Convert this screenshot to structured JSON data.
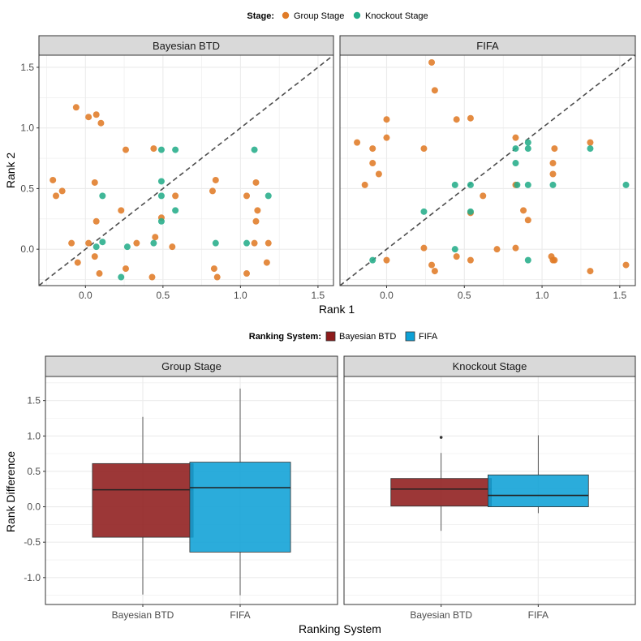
{
  "colors": {
    "group_stage": "#E07B27",
    "knockout_stage": "#25AD8A",
    "bayesian_btd": "#8E1B1B",
    "fifa": "#0EA1D6",
    "strip_fill": "#D9D9D9",
    "grid": "#EBEBEB",
    "panel_border": "#333333"
  },
  "chart_data": [
    {
      "type": "scatter",
      "legend": {
        "title": "Stage:",
        "entries": [
          "Group Stage",
          "Knockout Stage"
        ],
        "placement": "top"
      },
      "xlabel": "Rank 1",
      "ylabel": "Rank 2",
      "xlim": [
        -0.3,
        1.6
      ],
      "ylim": [
        -0.3,
        1.6
      ],
      "xticks": [
        0.0,
        0.5,
        1.0,
        1.5
      ],
      "yticks": [
        0.0,
        0.5,
        1.0,
        1.5
      ],
      "tick_labels": [
        "0.0",
        "0.5",
        "1.0",
        "1.5"
      ],
      "reference_line": "y = x (dashed)",
      "grid": true,
      "facets": [
        {
          "label": "Bayesian BTD",
          "series": [
            {
              "name": "Group Stage",
              "points": [
                [
                  -0.06,
                  1.17
                ],
                [
                  0.02,
                  1.09
                ],
                [
                  0.07,
                  1.11
                ],
                [
                  0.1,
                  1.04
                ],
                [
                  0.26,
                  0.82
                ],
                [
                  0.44,
                  0.83
                ],
                [
                  -0.21,
                  0.57
                ],
                [
                  -0.19,
                  0.44
                ],
                [
                  -0.15,
                  0.48
                ],
                [
                  0.06,
                  0.55
                ],
                [
                  -0.09,
                  0.05
                ],
                [
                  0.02,
                  0.05
                ],
                [
                  -0.05,
                  -0.11
                ],
                [
                  0.06,
                  -0.06
                ],
                [
                  0.07,
                  0.23
                ],
                [
                  0.09,
                  -0.2
                ],
                [
                  0.23,
                  0.32
                ],
                [
                  0.26,
                  -0.16
                ],
                [
                  0.33,
                  0.05
                ],
                [
                  0.43,
                  -0.23
                ],
                [
                  0.45,
                  0.1
                ],
                [
                  0.49,
                  0.26
                ],
                [
                  0.56,
                  0.02
                ],
                [
                  0.58,
                  0.44
                ],
                [
                  0.82,
                  0.48
                ],
                [
                  0.84,
                  0.57
                ],
                [
                  0.83,
                  -0.16
                ],
                [
                  0.85,
                  -0.23
                ],
                [
                  1.04,
                  0.44
                ],
                [
                  1.1,
                  0.55
                ],
                [
                  1.11,
                  0.32
                ],
                [
                  1.1,
                  0.23
                ],
                [
                  1.09,
                  0.05
                ],
                [
                  1.04,
                  -0.2
                ],
                [
                  1.18,
                  0.05
                ],
                [
                  1.17,
                  -0.11
                ]
              ]
            },
            {
              "name": "Knockout Stage",
              "points": [
                [
                  0.49,
                  0.82
                ],
                [
                  0.58,
                  0.82
                ],
                [
                  0.49,
                  0.56
                ],
                [
                  0.49,
                  0.44
                ],
                [
                  0.49,
                  0.23
                ],
                [
                  0.58,
                  0.32
                ],
                [
                  0.11,
                  0.44
                ],
                [
                  0.11,
                  0.06
                ],
                [
                  0.07,
                  0.02
                ],
                [
                  0.27,
                  0.02
                ],
                [
                  0.44,
                  0.05
                ],
                [
                  0.23,
                  -0.23
                ],
                [
                  0.84,
                  0.05
                ],
                [
                  1.04,
                  0.05
                ],
                [
                  1.09,
                  0.82
                ],
                [
                  1.18,
                  0.44
                ]
              ]
            }
          ]
        },
        {
          "label": "FIFA",
          "series": [
            {
              "name": "Group Stage",
              "points": [
                [
                  0.29,
                  1.54
                ],
                [
                  0.31,
                  1.31
                ],
                [
                  0.0,
                  1.07
                ],
                [
                  0.45,
                  1.07
                ],
                [
                  0.54,
                  1.08
                ],
                [
                  -0.19,
                  0.88
                ],
                [
                  -0.09,
                  0.83
                ],
                [
                  0.0,
                  0.92
                ],
                [
                  0.24,
                  0.83
                ],
                [
                  -0.09,
                  0.71
                ],
                [
                  -0.05,
                  0.62
                ],
                [
                  -0.14,
                  0.53
                ],
                [
                  0.54,
                  0.3
                ],
                [
                  0.62,
                  0.44
                ],
                [
                  0.0,
                  -0.09
                ],
                [
                  0.24,
                  0.01
                ],
                [
                  0.29,
                  -0.13
                ],
                [
                  0.31,
                  -0.18
                ],
                [
                  0.45,
                  -0.06
                ],
                [
                  0.54,
                  -0.09
                ],
                [
                  0.71,
                  0.0
                ],
                [
                  0.83,
                  0.92
                ],
                [
                  0.83,
                  0.01
                ],
                [
                  0.88,
                  0.32
                ],
                [
                  0.91,
                  0.24
                ],
                [
                  1.07,
                  0.71
                ],
                [
                  1.07,
                  0.62
                ],
                [
                  1.08,
                  0.83
                ],
                [
                  1.06,
                  -0.06
                ],
                [
                  1.07,
                  -0.09
                ],
                [
                  1.31,
                  0.88
                ],
                [
                  1.31,
                  -0.18
                ],
                [
                  1.54,
                  -0.13
                ],
                [
                  1.08,
                  -0.09
                ],
                [
                  0.83,
                  0.53
                ]
              ]
            },
            {
              "name": "Knockout Stage",
              "points": [
                [
                  0.24,
                  0.31
                ],
                [
                  0.44,
                  0.53
                ],
                [
                  0.54,
                  0.53
                ],
                [
                  0.54,
                  0.31
                ],
                [
                  0.44,
                  0.0
                ],
                [
                  -0.09,
                  -0.09
                ],
                [
                  0.83,
                  0.83
                ],
                [
                  0.91,
                  0.88
                ],
                [
                  0.91,
                  0.83
                ],
                [
                  0.83,
                  0.71
                ],
                [
                  0.84,
                  0.53
                ],
                [
                  0.91,
                  0.53
                ],
                [
                  1.07,
                  0.53
                ],
                [
                  0.91,
                  -0.09
                ],
                [
                  1.31,
                  0.83
                ],
                [
                  1.54,
                  0.53
                ]
              ]
            }
          ]
        }
      ]
    },
    {
      "type": "box",
      "legend": {
        "title": "Ranking System:",
        "entries": [
          "Bayesian BTD",
          "FIFA"
        ],
        "placement": "top"
      },
      "xlabel": "Ranking System",
      "ylabel": "Rank Difference",
      "categories": [
        "Bayesian BTD",
        "FIFA"
      ],
      "ylim": [
        -1.38,
        1.84
      ],
      "yticks": [
        -1.0,
        -0.5,
        0.0,
        0.5,
        1.0,
        1.5
      ],
      "ytick_labels": [
        "-1.0",
        "-0.5",
        "0.0",
        "0.5",
        "1.0",
        "1.5"
      ],
      "grid": true,
      "facets": [
        {
          "label": "Group Stage",
          "boxes": [
            {
              "name": "Bayesian BTD",
              "min": -1.24,
              "q1": -0.43,
              "median": 0.24,
              "q3": 0.61,
              "max": 1.27,
              "outliers": []
            },
            {
              "name": "FIFA",
              "min": -1.25,
              "q1": -0.64,
              "median": 0.27,
              "q3": 0.63,
              "max": 1.67,
              "outliers": []
            }
          ]
        },
        {
          "label": "Knockout Stage",
          "boxes": [
            {
              "name": "Bayesian BTD",
              "min": -0.34,
              "q1": 0.01,
              "median": 0.25,
              "q3": 0.4,
              "max": 0.76,
              "outliers": [
                0.98
              ]
            },
            {
              "name": "FIFA",
              "min": -0.09,
              "q1": 0.0,
              "median": 0.16,
              "q3": 0.45,
              "max": 1.01,
              "outliers": []
            }
          ]
        }
      ]
    }
  ]
}
